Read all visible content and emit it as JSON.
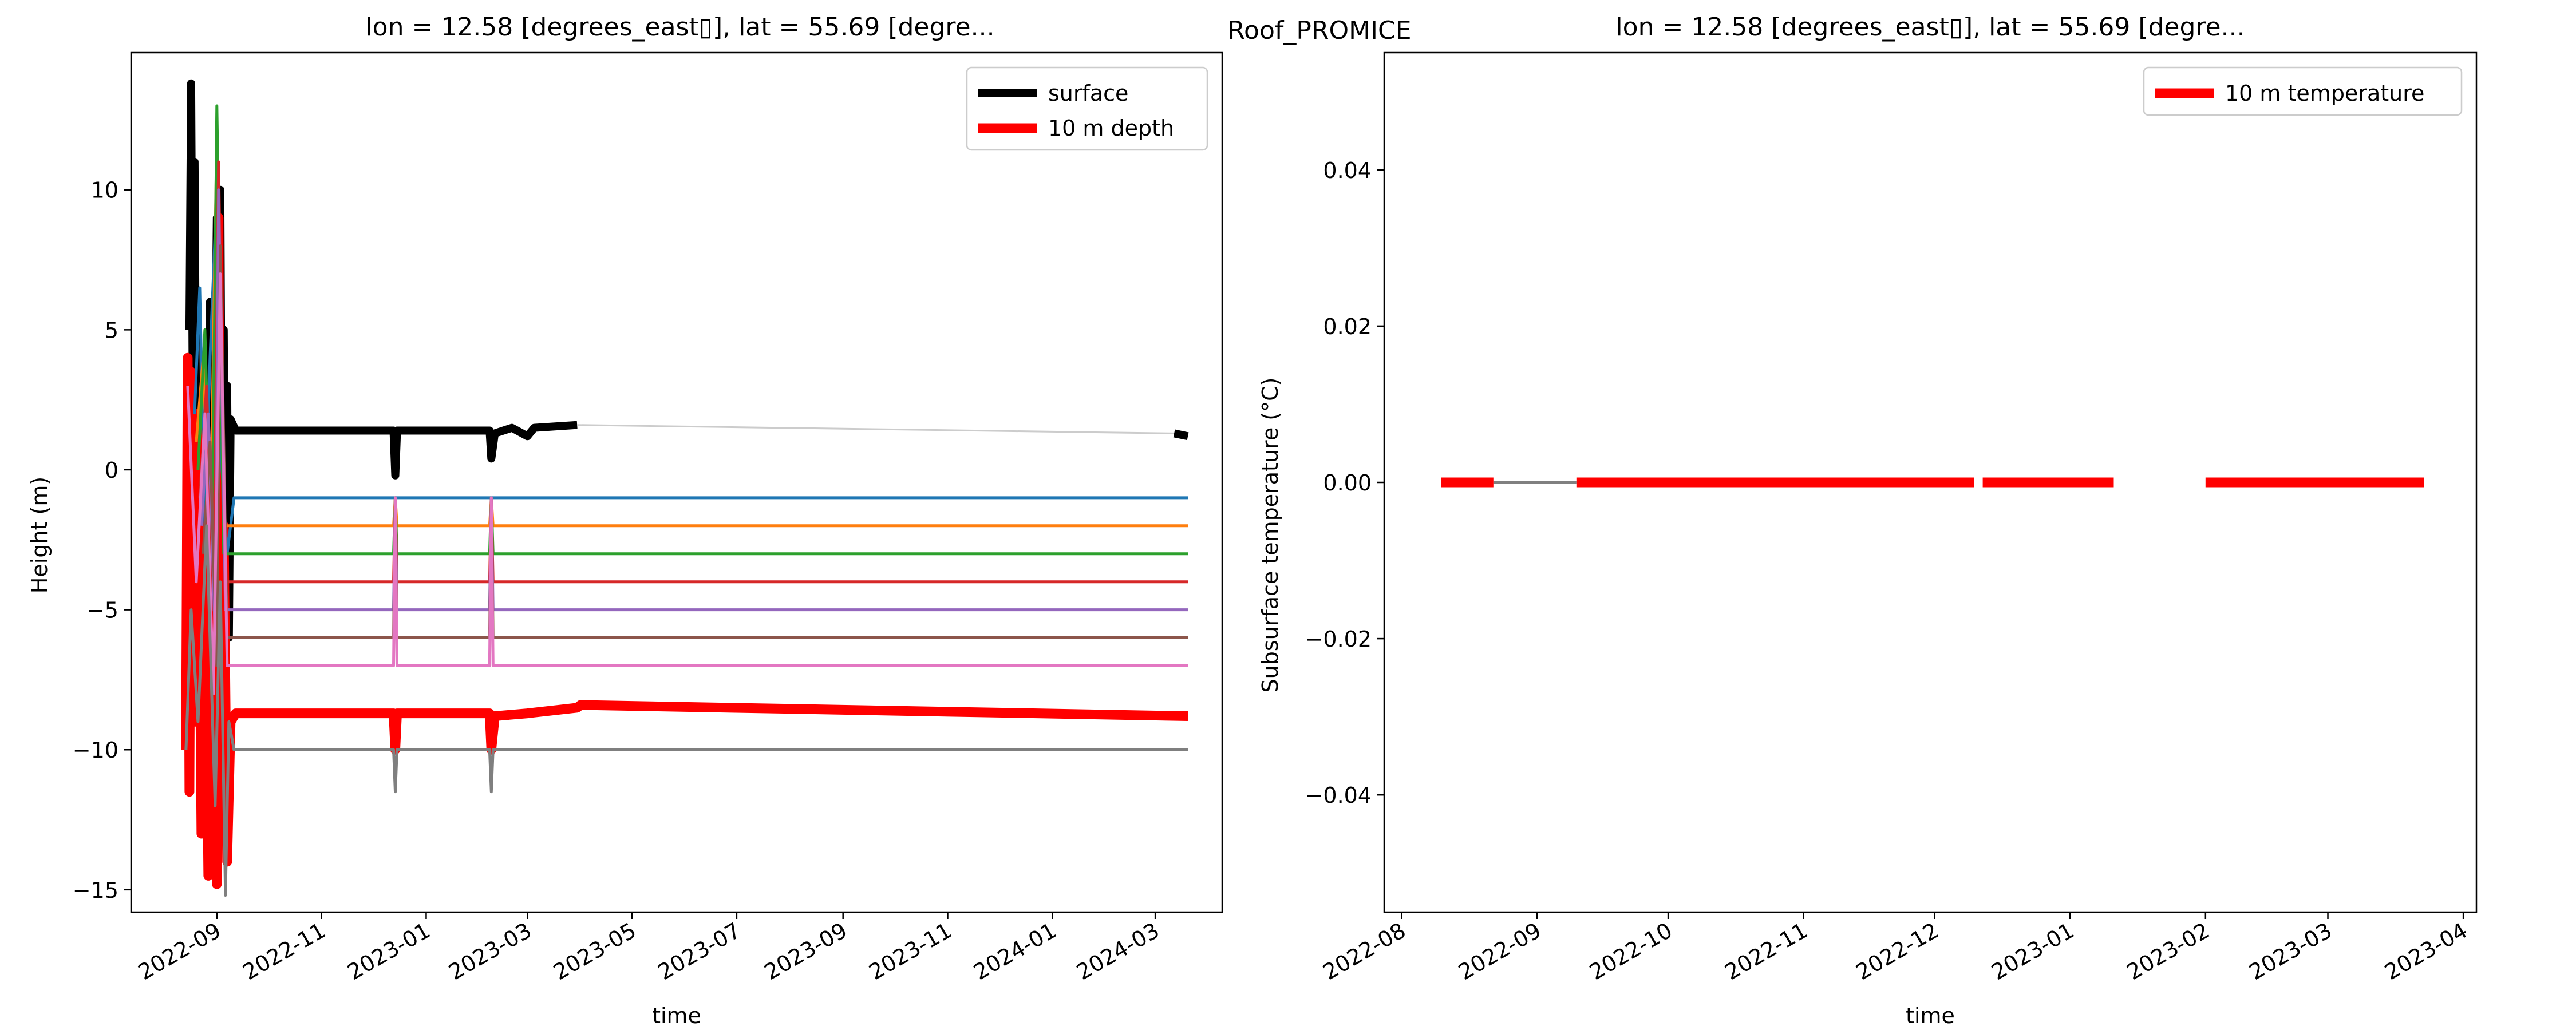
{
  "suptitle": "Roof_PROMICE",
  "chart_data": [
    {
      "type": "line",
      "title": "lon = 12.58 [degrees_east▯], lat = 55.69 [degre...",
      "xlabel": "time",
      "ylabel": "Height (m)",
      "xlim": [
        "2022-07-13",
        "2024-04-09"
      ],
      "ylim": [
        -15.8,
        14.9
      ],
      "x_ticks": [
        "2022-09-01",
        "2022-11-01",
        "2023-01-01",
        "2023-03-01",
        "2023-05-01",
        "2023-07-01",
        "2023-09-01",
        "2023-11-01",
        "2024-01-01",
        "2024-03-01"
      ],
      "x_tick_labels": [
        "2022-09",
        "2022-11",
        "2023-01",
        "2023-03",
        "2023-05",
        "2023-07",
        "2023-09",
        "2023-11",
        "2024-01",
        "2024-03"
      ],
      "y_ticks": [
        -15,
        -10,
        -5,
        0,
        5,
        10
      ],
      "y_tick_labels": [
        "−15",
        "−10",
        "−5",
        "0",
        "5",
        "10"
      ],
      "grid": false,
      "legend": {
        "placement": "top-right",
        "entries": [
          "surface",
          "10 m depth"
        ]
      },
      "series": [
        {
          "name": "surface",
          "color": "#000000",
          "width": 14,
          "points": [
            [
              "2022-08-16",
              5
            ],
            [
              "2022-08-17",
              13.8
            ],
            [
              "2022-08-18",
              2
            ],
            [
              "2022-08-19",
              11
            ],
            [
              "2022-08-20",
              0
            ],
            [
              "2022-08-22",
              -1
            ],
            [
              "2022-08-24",
              3
            ],
            [
              "2022-08-26",
              -2
            ],
            [
              "2022-08-28",
              6
            ],
            [
              "2022-08-30",
              -3
            ],
            [
              "2022-09-01",
              9
            ],
            [
              "2022-09-02",
              1
            ],
            [
              "2022-09-03",
              10
            ],
            [
              "2022-09-04",
              -2
            ],
            [
              "2022-09-05",
              5
            ],
            [
              "2022-09-06",
              -5
            ],
            [
              "2022-09-07",
              3
            ],
            [
              "2022-09-08",
              -6
            ],
            [
              "2022-09-09",
              1.8
            ],
            [
              "2022-09-12",
              1.4
            ],
            [
              "2022-12-13",
              1.4
            ],
            [
              "2022-12-14",
              -0.2
            ],
            [
              "2022-12-15",
              1.4
            ],
            [
              "2023-02-07",
              1.4
            ],
            [
              "2023-02-08",
              0.4
            ],
            [
              "2023-02-10",
              1.3
            ],
            [
              "2023-02-20",
              1.5
            ],
            [
              "2023-03-01",
              1.2
            ],
            [
              "2023-03-05",
              1.5
            ],
            [
              "2023-03-30",
              1.6
            ]
          ]
        },
        {
          "name": "surface (gap)",
          "color": "#cccccc",
          "width": 3,
          "points": [
            [
              "2023-03-30",
              1.6
            ],
            [
              "2024-03-12",
              1.3
            ]
          ]
        },
        {
          "name": "surface (end)",
          "color": "#000000",
          "width": 14,
          "points": [
            [
              "2024-03-12",
              1.3
            ],
            [
              "2024-03-20",
              1.2
            ]
          ]
        },
        {
          "name": "10 m depth",
          "color": "#ff0000",
          "width": 17,
          "points": [
            [
              "2022-08-14",
              -10
            ],
            [
              "2022-08-15",
              4
            ],
            [
              "2022-08-16",
              -11.5
            ],
            [
              "2022-08-17",
              3.5
            ],
            [
              "2022-08-19",
              -9
            ],
            [
              "2022-08-21",
              2
            ],
            [
              "2022-08-23",
              -13
            ],
            [
              "2022-08-25",
              -2
            ],
            [
              "2022-08-27",
              -14.5
            ],
            [
              "2022-08-29",
              1
            ],
            [
              "2022-09-01",
              -14.8
            ],
            [
              "2022-09-02",
              9
            ],
            [
              "2022-09-03",
              -13
            ],
            [
              "2022-09-05",
              -2
            ],
            [
              "2022-09-07",
              -14
            ],
            [
              "2022-09-09",
              -9
            ],
            [
              "2022-09-12",
              -8.7
            ],
            [
              "2022-12-13",
              -8.7
            ],
            [
              "2022-12-14",
              -10
            ],
            [
              "2022-12-15",
              -8.7
            ],
            [
              "2023-02-07",
              -8.7
            ],
            [
              "2023-02-08",
              -10
            ],
            [
              "2023-02-10",
              -8.8
            ],
            [
              "2023-03-01",
              -8.7
            ],
            [
              "2023-03-30",
              -8.5
            ],
            [
              "2023-04-01",
              -8.4
            ],
            [
              "2024-03-20",
              -8.8
            ]
          ]
        },
        {
          "name": "",
          "color": "#1f77b4",
          "width": 5,
          "points": [
            [
              "2022-08-19",
              2
            ],
            [
              "2022-08-22",
              6.5
            ],
            [
              "2022-08-25",
              -2
            ],
            [
              "2022-08-28",
              4
            ],
            [
              "2022-09-01",
              10
            ],
            [
              "2022-09-04",
              0
            ],
            [
              "2022-09-07",
              -3
            ],
            [
              "2022-09-11",
              -1
            ],
            [
              "2022-12-13",
              -1
            ],
            [
              "2022-12-14",
              -1
            ],
            [
              "2023-02-08",
              -1
            ],
            [
              "2024-03-20",
              -1
            ]
          ]
        },
        {
          "name": "",
          "color": "#ff7f0e",
          "width": 5,
          "points": [
            [
              "2022-08-20",
              1
            ],
            [
              "2022-08-24",
              4
            ],
            [
              "2022-08-28",
              -3
            ],
            [
              "2022-09-01",
              12
            ],
            [
              "2022-09-05",
              -2
            ],
            [
              "2022-09-11",
              -2
            ],
            [
              "2022-12-13",
              -2
            ],
            [
              "2022-12-14",
              -1
            ],
            [
              "2022-12-15",
              -2
            ],
            [
              "2023-02-07",
              -2
            ],
            [
              "2023-02-08",
              -1
            ],
            [
              "2023-02-09",
              -2
            ],
            [
              "2024-03-20",
              -2
            ]
          ]
        },
        {
          "name": "",
          "color": "#2ca02c",
          "width": 5,
          "points": [
            [
              "2022-08-21",
              0
            ],
            [
              "2022-08-25",
              5
            ],
            [
              "2022-08-29",
              -4
            ],
            [
              "2022-09-01",
              13
            ],
            [
              "2022-09-05",
              -3
            ],
            [
              "2022-09-11",
              -3
            ],
            [
              "2022-12-13",
              -3
            ],
            [
              "2022-12-14",
              -1
            ],
            [
              "2022-12-15",
              -3
            ],
            [
              "2023-02-07",
              -3
            ],
            [
              "2023-02-08",
              -1
            ],
            [
              "2023-02-09",
              -3
            ],
            [
              "2024-03-20",
              -3
            ]
          ]
        },
        {
          "name": "",
          "color": "#d62728",
          "width": 5,
          "points": [
            [
              "2022-08-22",
              -1
            ],
            [
              "2022-08-26",
              3
            ],
            [
              "2022-08-30",
              -5
            ],
            [
              "2022-09-02",
              11
            ],
            [
              "2022-09-06",
              -4
            ],
            [
              "2022-09-11",
              -4
            ],
            [
              "2022-12-13",
              -4
            ],
            [
              "2022-12-14",
              -1
            ],
            [
              "2022-12-15",
              -4
            ],
            [
              "2023-02-07",
              -4
            ],
            [
              "2023-02-08",
              -1
            ],
            [
              "2023-02-09",
              -4
            ],
            [
              "2024-03-20",
              -4
            ]
          ]
        },
        {
          "name": "",
          "color": "#9467bd",
          "width": 5,
          "points": [
            [
              "2022-08-23",
              -2
            ],
            [
              "2022-08-27",
              2
            ],
            [
              "2022-08-31",
              -6
            ],
            [
              "2022-09-02",
              10
            ],
            [
              "2022-09-06",
              -5
            ],
            [
              "2022-09-11",
              -5
            ],
            [
              "2022-12-13",
              -5
            ],
            [
              "2022-12-14",
              -1
            ],
            [
              "2022-12-15",
              -5
            ],
            [
              "2023-02-07",
              -5
            ],
            [
              "2023-02-08",
              -1
            ],
            [
              "2023-02-09",
              -5
            ],
            [
              "2024-03-20",
              -5
            ]
          ]
        },
        {
          "name": "",
          "color": "#8c564b",
          "width": 5,
          "points": [
            [
              "2022-08-24",
              -3
            ],
            [
              "2022-08-28",
              1
            ],
            [
              "2022-09-01",
              -7
            ],
            [
              "2022-09-03",
              8
            ],
            [
              "2022-09-07",
              -6
            ],
            [
              "2022-09-11",
              -6
            ],
            [
              "2022-12-13",
              -6
            ],
            [
              "2022-12-14",
              -1
            ],
            [
              "2022-12-15",
              -6
            ],
            [
              "2023-02-07",
              -6
            ],
            [
              "2023-02-08",
              -1
            ],
            [
              "2023-02-09",
              -6
            ],
            [
              "2024-03-20",
              -6
            ]
          ]
        },
        {
          "name": "",
          "color": "#e377c2",
          "width": 5,
          "points": [
            [
              "2022-08-15",
              3
            ],
            [
              "2022-08-20",
              -4
            ],
            [
              "2022-08-25",
              2
            ],
            [
              "2022-08-30",
              -8
            ],
            [
              "2022-09-03",
              7
            ],
            [
              "2022-09-07",
              -7
            ],
            [
              "2022-09-11",
              -7
            ],
            [
              "2022-12-13",
              -7
            ],
            [
              "2022-12-14",
              -1
            ],
            [
              "2022-12-15",
              -7
            ],
            [
              "2023-02-07",
              -7
            ],
            [
              "2023-02-08",
              -1
            ],
            [
              "2023-02-09",
              -7
            ],
            [
              "2024-03-20",
              -7
            ]
          ]
        },
        {
          "name": "",
          "color": "#7f7f7f",
          "width": 5,
          "points": [
            [
              "2022-08-14",
              -10
            ],
            [
              "2022-08-17",
              -5
            ],
            [
              "2022-08-21",
              -9
            ],
            [
              "2022-08-26",
              -2
            ],
            [
              "2022-08-31",
              -12
            ],
            [
              "2022-09-03",
              -4
            ],
            [
              "2022-09-06",
              -15.2
            ],
            [
              "2022-09-08",
              -9
            ],
            [
              "2022-09-11",
              -10
            ],
            [
              "2022-12-13",
              -10
            ],
            [
              "2022-12-14",
              -11.5
            ],
            [
              "2022-12-15",
              -10
            ],
            [
              "2023-02-07",
              -10
            ],
            [
              "2023-02-08",
              -11.5
            ],
            [
              "2023-02-09",
              -10
            ],
            [
              "2024-03-20",
              -10
            ]
          ]
        }
      ]
    },
    {
      "type": "line",
      "title": "lon = 12.58 [degrees_east▯], lat = 55.69 [degre...",
      "xlabel": "time",
      "ylabel": "Subsurface temperature (°C)",
      "xlim": [
        "2022-07-28",
        "2023-04-04"
      ],
      "ylim": [
        -0.055,
        0.055
      ],
      "x_ticks": [
        "2022-08-01",
        "2022-09-01",
        "2022-10-01",
        "2022-11-01",
        "2022-12-01",
        "2023-01-01",
        "2023-02-01",
        "2023-03-01",
        "2023-04-01"
      ],
      "x_tick_labels": [
        "2022-08",
        "2022-09",
        "2022-10",
        "2022-11",
        "2022-12",
        "2023-01",
        "2023-02",
        "2023-03",
        "2023-04"
      ],
      "y_ticks": [
        -0.04,
        -0.02,
        0.0,
        0.02,
        0.04
      ],
      "y_tick_labels": [
        "−0.04",
        "−0.02",
        "0.00",
        "0.02",
        "0.04"
      ],
      "grid": false,
      "legend": {
        "placement": "top-right",
        "entries": [
          "10 m temperature"
        ]
      },
      "series": [
        {
          "name": "10 m temperature (gap)",
          "color": "#808080",
          "width": 5,
          "points": [
            [
              "2022-08-22",
              0
            ],
            [
              "2022-09-10",
              0
            ]
          ]
        },
        {
          "name": "10 m temperature",
          "color": "#ff0000",
          "width": 17,
          "points": [
            [
              "2022-08-10",
              0
            ],
            [
              "2022-08-22",
              0
            ]
          ]
        },
        {
          "name": "10 m temperature",
          "color": "#ff0000",
          "width": 17,
          "points": [
            [
              "2022-09-10",
              0
            ],
            [
              "2022-12-10",
              0
            ]
          ]
        },
        {
          "name": "10 m temperature",
          "color": "#ff0000",
          "width": 17,
          "points": [
            [
              "2022-12-12",
              0
            ],
            [
              "2023-01-11",
              0
            ]
          ]
        },
        {
          "name": "10 m temperature",
          "color": "#ff0000",
          "width": 17,
          "points": [
            [
              "2023-02-01",
              0
            ],
            [
              "2023-03-23",
              0
            ]
          ]
        }
      ]
    }
  ]
}
